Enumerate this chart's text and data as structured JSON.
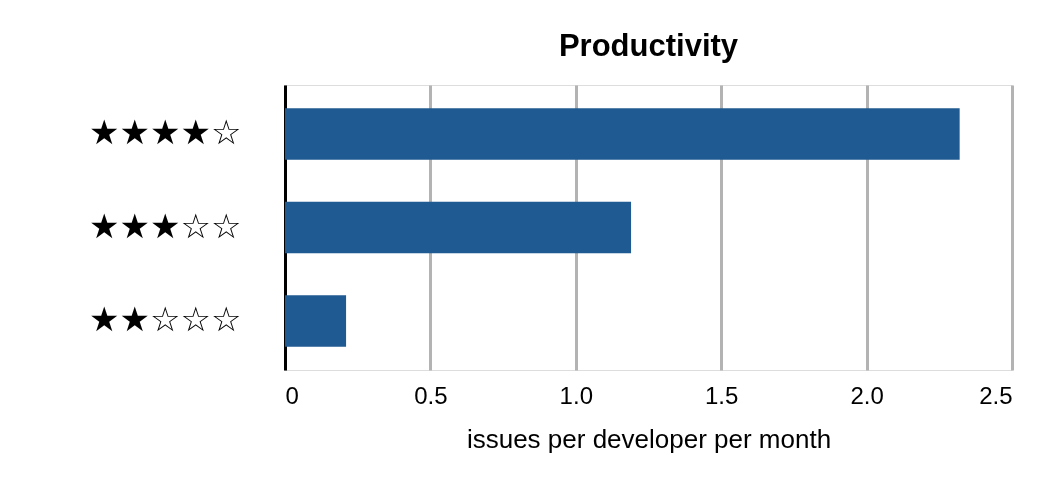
{
  "chart_data": {
    "type": "bar",
    "orientation": "horizontal",
    "title": "Productivity",
    "xlabel": "issues per developer per month",
    "categories": [
      "★★★★☆",
      "★★★☆☆",
      "★★☆☆☆"
    ],
    "values": [
      2.32,
      1.19,
      0.21
    ],
    "color": "#1f5a92",
    "xlim": [
      0,
      2.5
    ],
    "xticks": [
      0,
      0.5,
      {
        "value": 1,
        "label": "1.0"
      },
      1.5,
      {
        "value": 2,
        "label": "2.0"
      },
      2.5
    ],
    "grid": "x"
  }
}
